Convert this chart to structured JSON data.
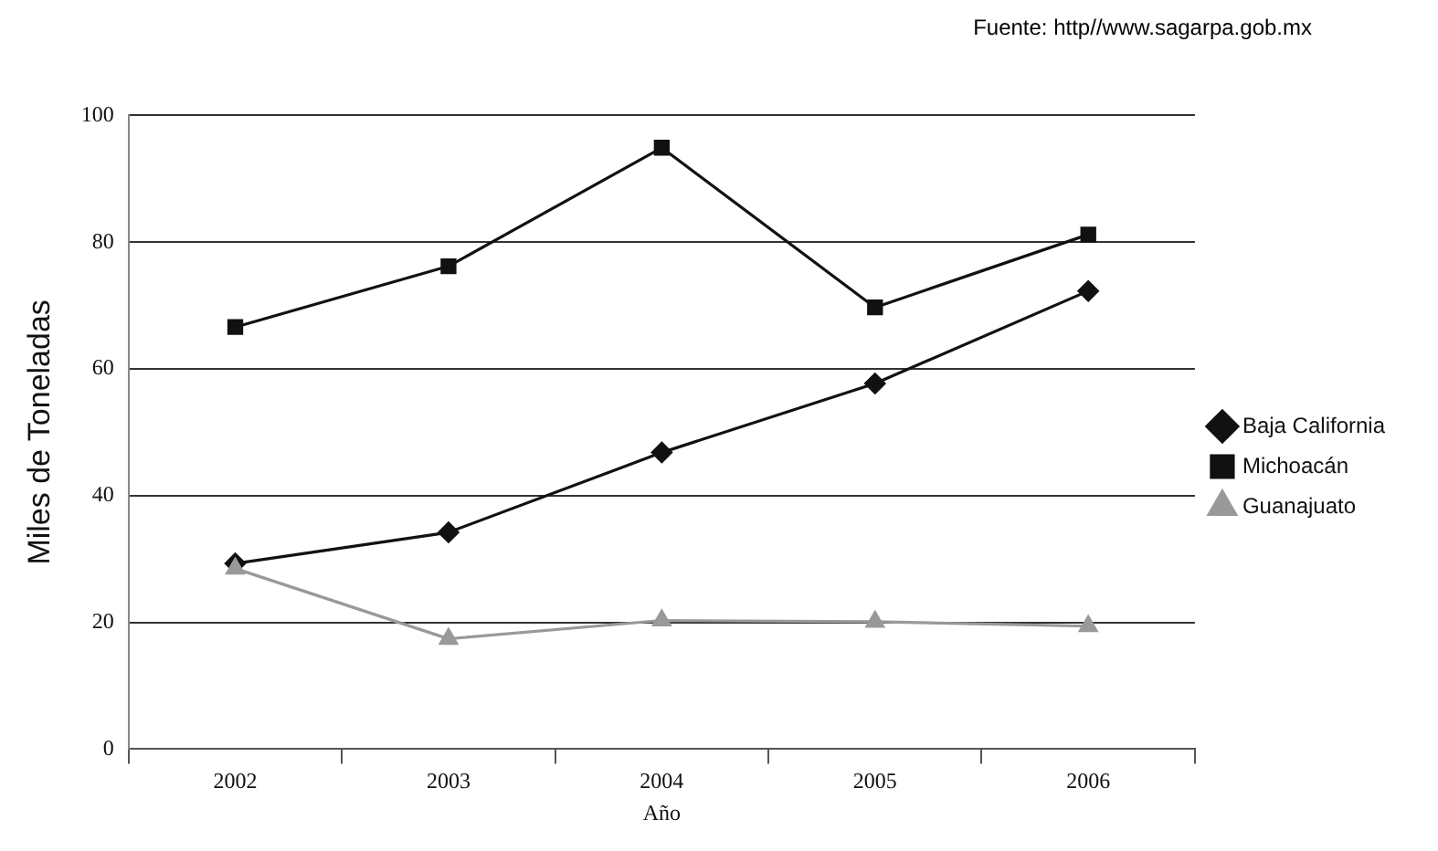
{
  "chart_data": {
    "type": "line",
    "categories": [
      "2002",
      "2003",
      "2004",
      "2005",
      "2006"
    ],
    "series": [
      {
        "name": "Baja California",
        "color": "#111111",
        "marker": "diamond",
        "values": [
          29.3,
          34.2,
          46.8,
          57.7,
          72.3
        ]
      },
      {
        "name": "Michoacán",
        "color": "#111111",
        "marker": "square",
        "values": [
          66.6,
          76.2,
          94.9,
          69.7,
          81.2
        ]
      },
      {
        "name": "Guanajuato",
        "color": "#999999",
        "marker": "triangle",
        "values": [
          28.5,
          17.4,
          20.3,
          20.1,
          19.4
        ]
      }
    ],
    "xlabel": "Año",
    "ylabel": "Miles de Toneladas",
    "ylim": [
      0,
      100
    ],
    "yticks": [
      0,
      20,
      40,
      60,
      80,
      100
    ],
    "grid": "y",
    "legend": "right",
    "line_style": "solid",
    "annotations": [
      "Fuente: http//www.sagarpa.gob.mx"
    ]
  }
}
